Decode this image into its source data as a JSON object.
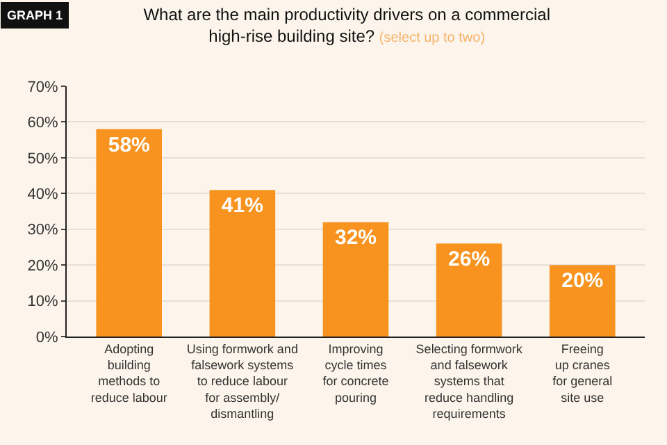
{
  "chart_data": {
    "type": "bar",
    "title": "What are the main productivity drivers on a commercial\nhigh-rise building site?",
    "subtitle": "(select up to two)",
    "annotations": [
      "GRAPH 1"
    ],
    "categories": [
      "Adopting\nbuilding\nmethods to\nreduce labour",
      "Using formwork and\nfalsework systems\nto reduce labour\nfor assembly/\ndismantling",
      "Improving\ncycle times\nfor concrete\npouring",
      "Selecting formwork\nand falsework\nsystems that\nreduce handling\nrequirements",
      "Freeing\nup cranes\nfor general\nsite use"
    ],
    "values": [
      58,
      41,
      32,
      26,
      20
    ],
    "color": "#f7931e",
    "value_labels": [
      "58%",
      "41%",
      "32%",
      "26%",
      "20%"
    ],
    "ylim": [
      0,
      70
    ],
    "yticks": [
      {
        "value": 0,
        "label": "0%"
      },
      {
        "value": 10,
        "label": "10%"
      },
      {
        "value": 20,
        "label": "20%"
      },
      {
        "value": 30,
        "label": "30%"
      },
      {
        "value": 40,
        "label": "40%"
      },
      {
        "value": 50,
        "label": "50%"
      },
      {
        "value": 60,
        "label": "60%"
      },
      {
        "value": 70,
        "label": "70%"
      }
    ],
    "grid": "y",
    "legend": false
  }
}
